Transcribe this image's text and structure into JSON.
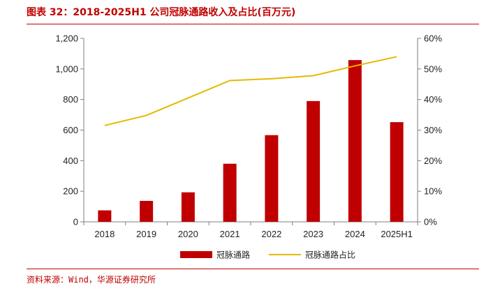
{
  "figure": {
    "title": "图表 32：2018-2025H1 公司冠脉通路收入及占比(百万元)",
    "source": "资料来源：Wind，华源证券研究所"
  },
  "colors": {
    "bar": "#c00000",
    "line": "#e6b800",
    "accent": "#c00000"
  },
  "chart_data": {
    "type": "bar",
    "title": "图表 32：2018-2025H1 公司冠脉通路收入及占比(百万元)",
    "categories": [
      "2018",
      "2019",
      "2020",
      "2021",
      "2022",
      "2023",
      "2024",
      "2025H1"
    ],
    "series": [
      {
        "name": "冠脉通路",
        "type": "bar",
        "axis": "left",
        "values": [
          75,
          137,
          193,
          380,
          567,
          790,
          1058,
          652
        ]
      },
      {
        "name": "冠脉通路占比",
        "type": "line",
        "axis": "right",
        "values": [
          31.5,
          34.8,
          40.5,
          46.2,
          46.8,
          47.8,
          51.0,
          54.0
        ]
      }
    ],
    "y_left": {
      "ylim": [
        0,
        1200
      ],
      "ticks": [
        0,
        200,
        400,
        600,
        800,
        1000,
        1200
      ],
      "tick_labels": [
        "0",
        "200",
        "400",
        "600",
        "800",
        "1,000",
        "1,200"
      ]
    },
    "y_right": {
      "ylim": [
        0,
        60
      ],
      "ticks": [
        0,
        10,
        20,
        30,
        40,
        50,
        60
      ],
      "tick_labels": [
        "0%",
        "10%",
        "20%",
        "30%",
        "40%",
        "50%",
        "60%"
      ]
    },
    "xlabel": "",
    "ylabel": "",
    "grid": false,
    "legend": "bottom"
  }
}
